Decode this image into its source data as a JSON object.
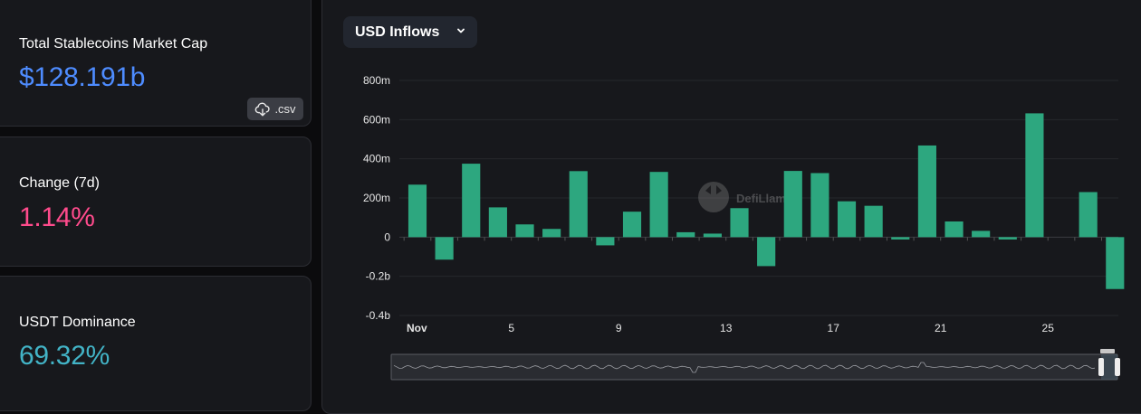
{
  "stats": {
    "market_cap": {
      "label": "Total Stablecoins Market Cap",
      "value": "$128.191b",
      "color": "#4e8cff"
    },
    "change": {
      "label": "Change (7d)",
      "value": "1.14%",
      "color": "#ff4b8c"
    },
    "dominance": {
      "label": "USDT Dominance",
      "value": "69.32%",
      "color": "#42b3c6"
    }
  },
  "csv_button": {
    "label": ".csv",
    "icon": "cloud-download-icon"
  },
  "dropdown": {
    "selected": "USD Inflows",
    "icon": "chevron-down-icon"
  },
  "watermark": {
    "text": "DefiLlama"
  },
  "chart_data": {
    "type": "bar",
    "title": "USD Inflows",
    "x_tick_labels": [
      "Nov",
      "5",
      "9",
      "13",
      "17",
      "21",
      "25"
    ],
    "y_tick_labels": [
      "800m",
      "600m",
      "400m",
      "200m",
      "0",
      "-0.2b",
      "-0.4b"
    ],
    "ylim": [
      -400,
      800
    ],
    "y_unit": "millions USD",
    "bar_color": "#2da77f",
    "categories": [
      "Nov 1",
      "Nov 2",
      "Nov 3",
      "Nov 4",
      "Nov 5",
      "Nov 6",
      "Nov 7",
      "Nov 8",
      "Nov 9",
      "Nov 10",
      "Nov 11",
      "Nov 12",
      "Nov 13",
      "Nov 14",
      "Nov 15",
      "Nov 16",
      "Nov 17",
      "Nov 18",
      "Nov 19",
      "Nov 20",
      "Nov 21",
      "Nov 22",
      "Nov 23",
      "Nov 24",
      "Nov 25",
      "Nov 26",
      "Nov 27"
    ],
    "values": [
      268,
      -115,
      375,
      152,
      65,
      42,
      337,
      -42,
      130,
      333,
      25,
      18,
      148,
      -148,
      338,
      327,
      183,
      160,
      -12,
      468,
      80,
      32,
      -12,
      632,
      0,
      230,
      -265
    ],
    "grid": true,
    "legend": "none"
  }
}
